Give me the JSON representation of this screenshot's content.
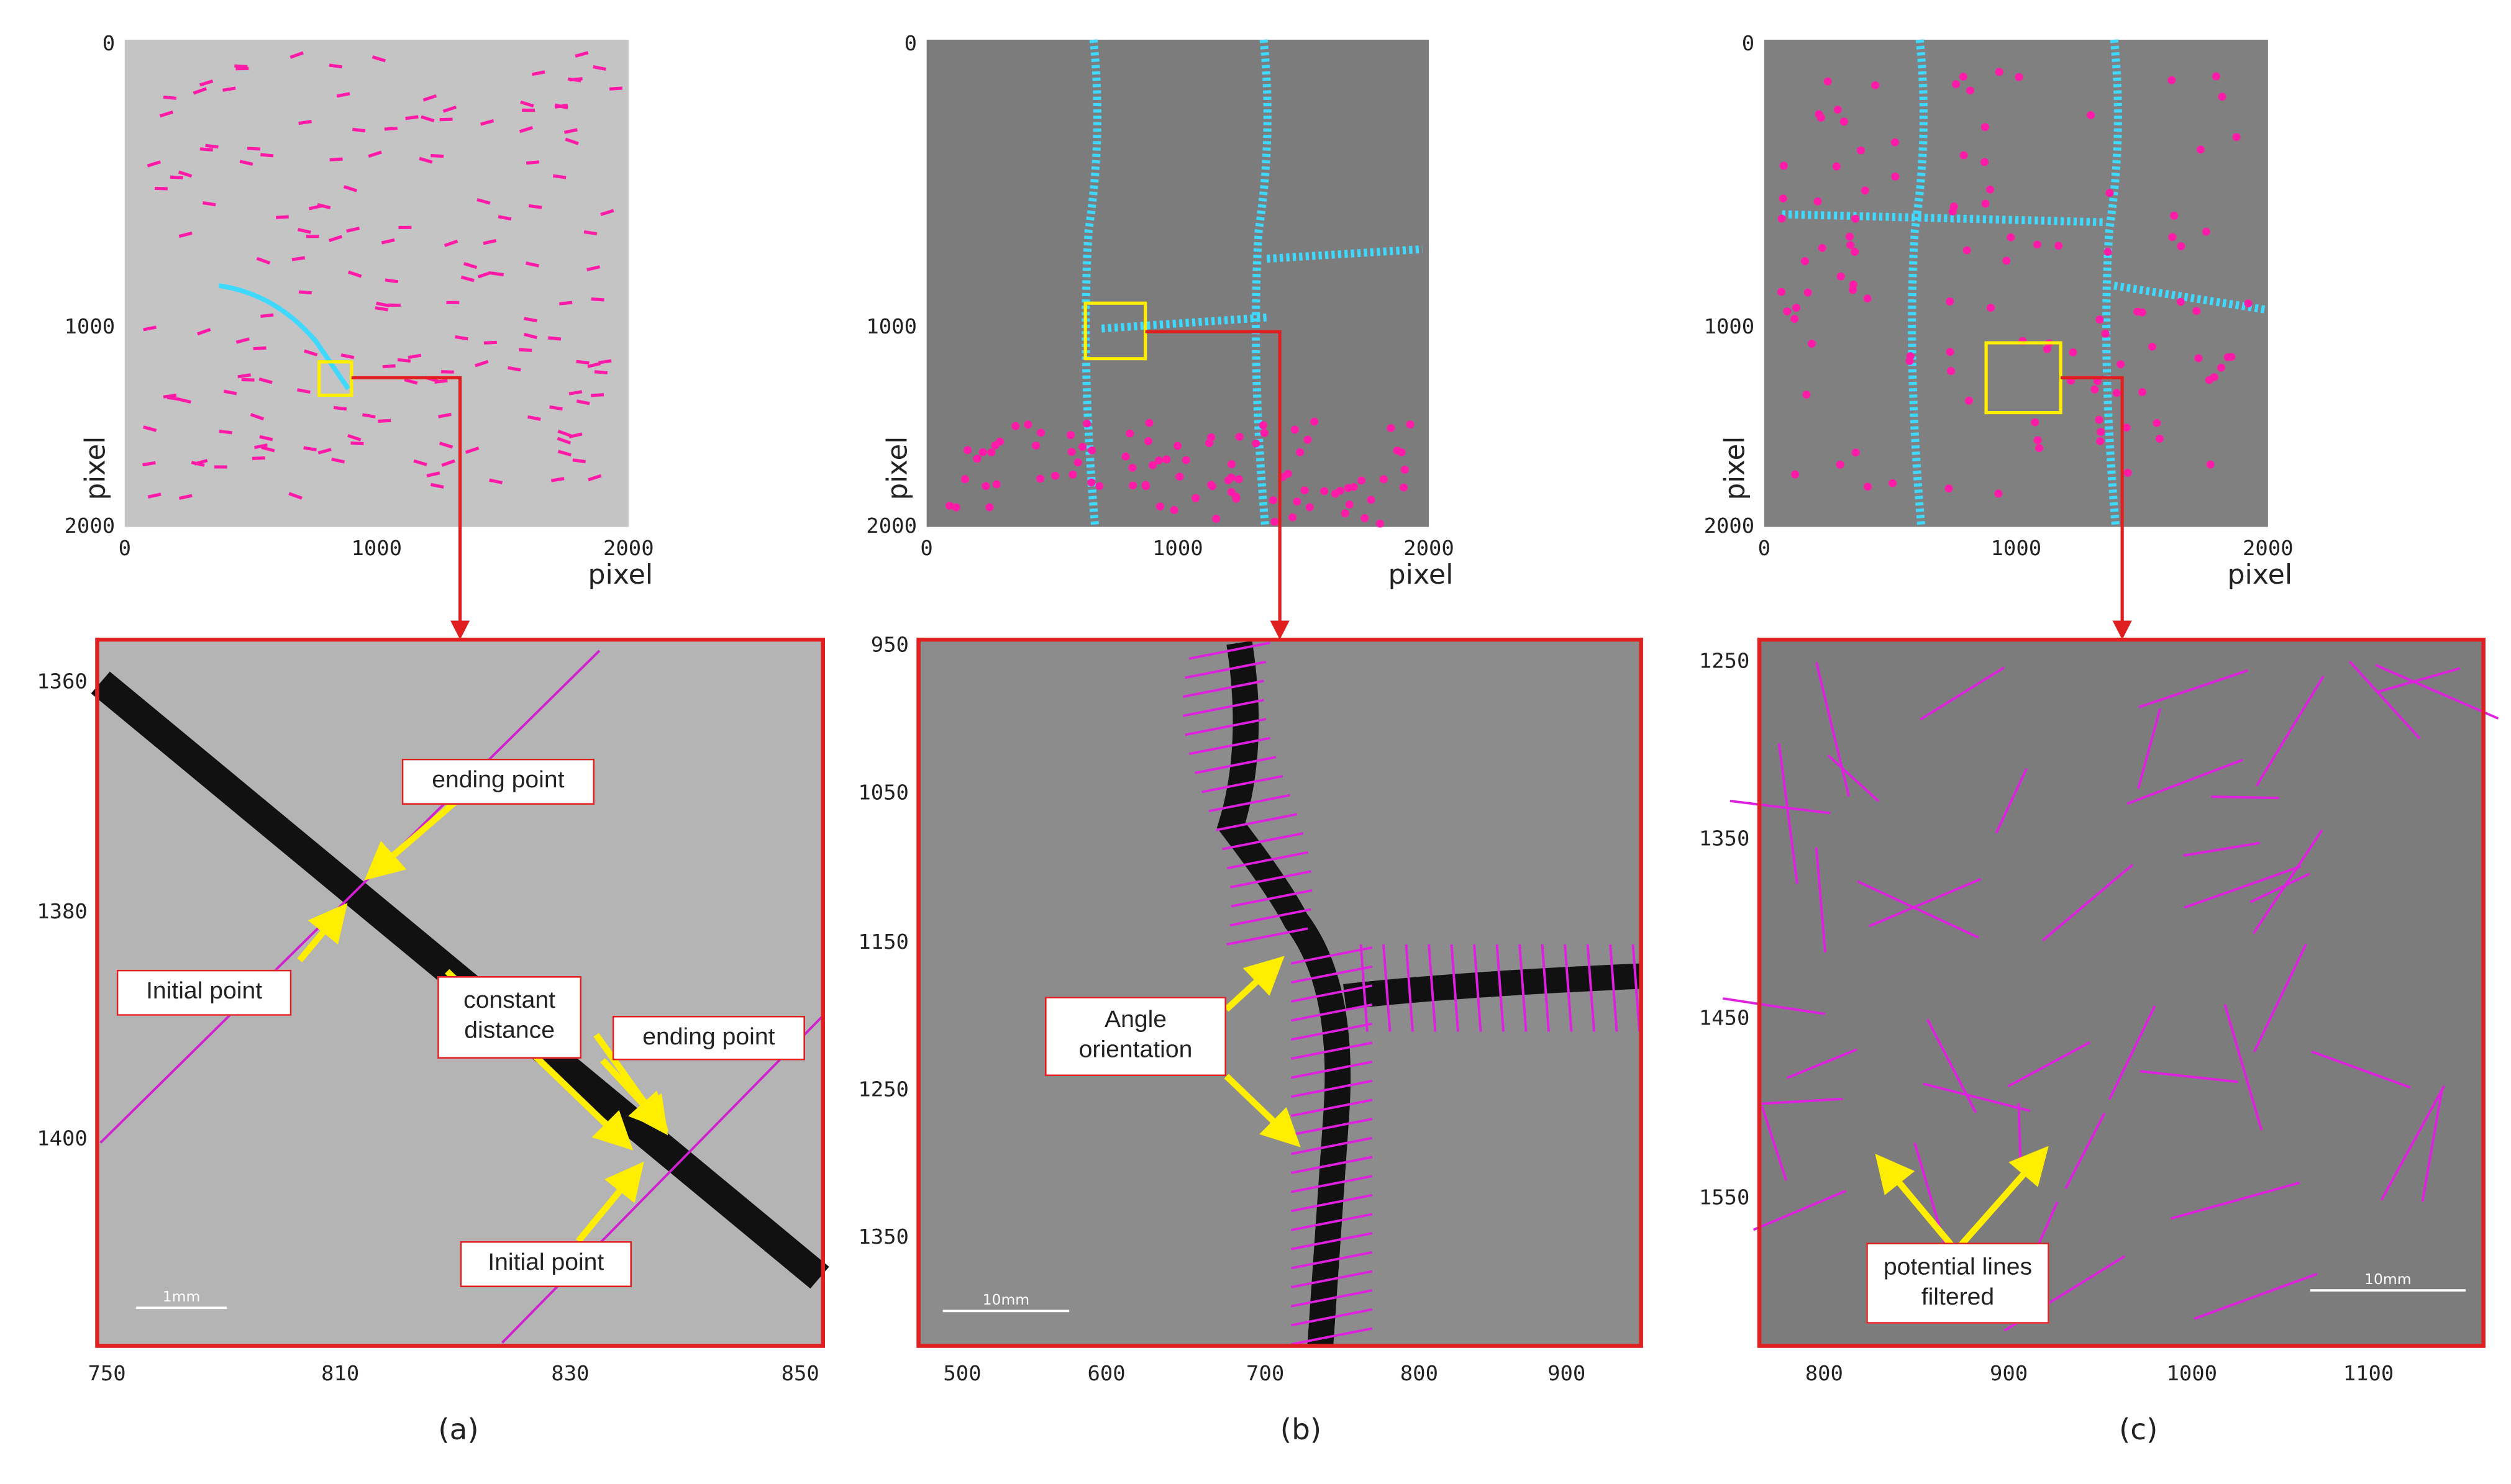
{
  "panels": [
    {
      "label": "(a)",
      "overview": {
        "yticks": [
          0,
          1000,
          2000
        ],
        "xticks": [
          0,
          1000,
          2000
        ],
        "y_axis_label": "pixel",
        "x_axis_label": "pixel"
      },
      "zoom": {
        "yticks": [
          1360,
          1380,
          1400
        ],
        "xticks": [
          750,
          810,
          830,
          850
        ],
        "annotations": [
          "ending point",
          "Initial point",
          "constant distance",
          "ending point",
          "Initial point"
        ],
        "scale_bar": "1mm"
      }
    },
    {
      "label": "(b)",
      "overview": {
        "yticks": [
          0,
          1000,
          2000
        ],
        "xticks": [
          0,
          1000,
          2000
        ],
        "y_axis_label": "pixel",
        "x_axis_label": "pixel"
      },
      "zoom": {
        "yticks": [
          950,
          1050,
          1150,
          1250,
          1350
        ],
        "xticks": [
          500,
          600,
          700,
          800,
          900
        ],
        "annotations": [
          "Angle orientation"
        ],
        "scale_bar": "10mm"
      }
    },
    {
      "label": "(c)",
      "overview": {
        "yticks": [
          0,
          1000,
          2000
        ],
        "xticks": [
          0,
          1000,
          2000
        ],
        "y_axis_label": "pixel",
        "x_axis_label": "pixel"
      },
      "zoom": {
        "yticks": [
          1250,
          1350,
          1450,
          1550
        ],
        "xticks": [
          800,
          900,
          1000,
          1100
        ],
        "annotations": [
          "potential lines filtered"
        ],
        "scale_bar": "10mm"
      }
    }
  ]
}
